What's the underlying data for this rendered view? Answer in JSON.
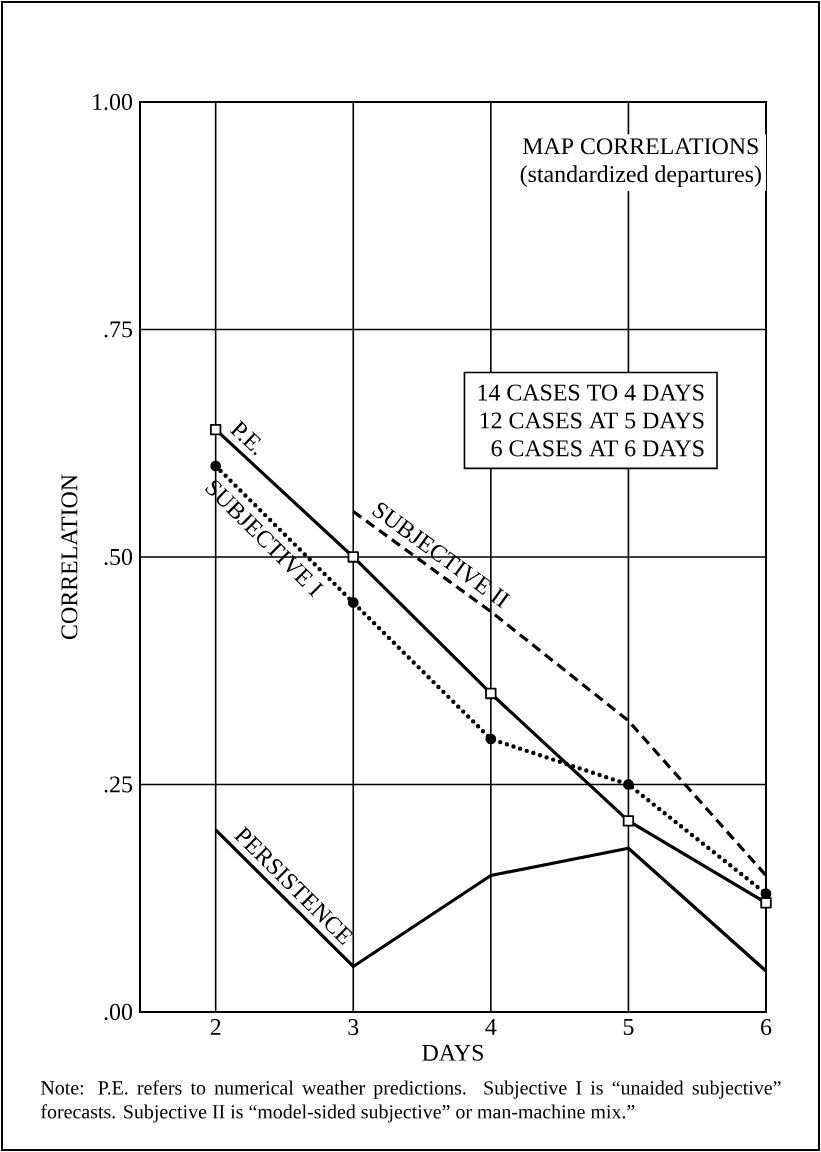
{
  "chart_data": {
    "type": "line",
    "title": "MAP CORRELATIONS",
    "subtitle": "(standardized departures)",
    "xlabel": "DAYS",
    "ylabel": "CORRELATION",
    "xlim": [
      1.45,
      6
    ],
    "ylim": [
      0,
      1
    ],
    "xticks": [
      2,
      3,
      4,
      5,
      6
    ],
    "yticks": [
      {
        "value": 0,
        "label": ".00"
      },
      {
        "value": 0.25,
        "label": ".25"
      },
      {
        "value": 0.5,
        "label": ".50"
      },
      {
        "value": 0.75,
        "label": ".75"
      },
      {
        "value": 1,
        "label": "1.00"
      }
    ],
    "grid": true,
    "series": [
      {
        "name": "P.E.",
        "color": "#000000",
        "x": [
          2,
          3,
          4,
          5,
          6
        ],
        "values": [
          0.64,
          0.5,
          0.35,
          0.21,
          0.12
        ],
        "marker": "square",
        "line_style": "solid"
      },
      {
        "name": "SUBJECTIVE I",
        "color": "#000000",
        "x": [
          2,
          3,
          4,
          5,
          6
        ],
        "values": [
          0.6,
          0.45,
          0.3,
          0.25,
          0.13
        ],
        "marker": "circle",
        "line_style": "dotted"
      },
      {
        "name": "SUBJECTIVE II",
        "color": "#000000",
        "x": [
          3,
          4,
          5,
          6
        ],
        "values": [
          0.55,
          0.44,
          0.32,
          0.15
        ],
        "line_style": "dashed"
      },
      {
        "name": "PERSISTENCE",
        "color": "#000000",
        "x": [
          2,
          3,
          4,
          5,
          6
        ],
        "values": [
          0.2,
          0.05,
          0.15,
          0.18,
          0.045
        ],
        "line_style": "solid"
      }
    ],
    "annotations": [
      "14 CASES TO 4 DAYS",
      "12 CASES AT 5 DAYS",
      "6 CASES AT 6 DAYS",
      "Note: P.E. refers to numerical weather predictions. Subjective I is “unaided subjective” forecasts. Subjective II is “model-sided subjective” or man-machine mix.”"
    ]
  }
}
